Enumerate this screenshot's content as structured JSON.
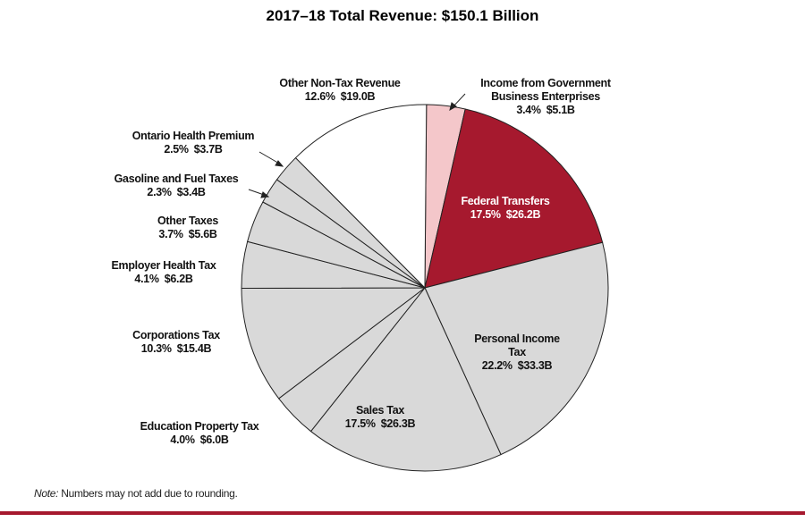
{
  "chart_data": {
    "type": "pie",
    "title": "2017–18 Total Revenue: $150.1 Billion",
    "categories": [
      "Income from Government Business Enterprises",
      "Federal Transfers",
      "Personal Income Tax",
      "Sales Tax",
      "Education Property Tax",
      "Corporations Tax",
      "Employer Health Tax",
      "Other Taxes",
      "Gasoline and Fuel Taxes",
      "Ontario Health Premium",
      "Other Non-Tax Revenue"
    ],
    "values": [
      3.4,
      17.5,
      22.2,
      17.5,
      4.0,
      10.3,
      4.1,
      3.7,
      2.3,
      2.5,
      12.6
    ],
    "value_labels": [
      "3.4%",
      "17.5%",
      "22.2%",
      "17.5%",
      "4.0%",
      "10.3%",
      "4.1%",
      "3.7%",
      "2.3%",
      "2.5%",
      "12.6%"
    ],
    "amounts": [
      5.1,
      26.2,
      33.3,
      26.3,
      6.0,
      15.4,
      6.2,
      5.6,
      3.4,
      3.7,
      19.0
    ],
    "amount_labels": [
      "$5.1B",
      "$26.2B",
      "$33.3B",
      "$26.3B",
      "$6.0B",
      "$15.4B",
      "$6.2B",
      "$5.6B",
      "$3.4B",
      "$3.7B",
      "$19.0B"
    ],
    "colors": [
      "#f4c7ca",
      "#a6192e",
      "#d9d9d9",
      "#d9d9d9",
      "#d9d9d9",
      "#d9d9d9",
      "#d9d9d9",
      "#d9d9d9",
      "#d9d9d9",
      "#d9d9d9",
      "#ffffff"
    ],
    "note_label": "Note:",
    "note": "Numbers may not add due to rounding."
  }
}
